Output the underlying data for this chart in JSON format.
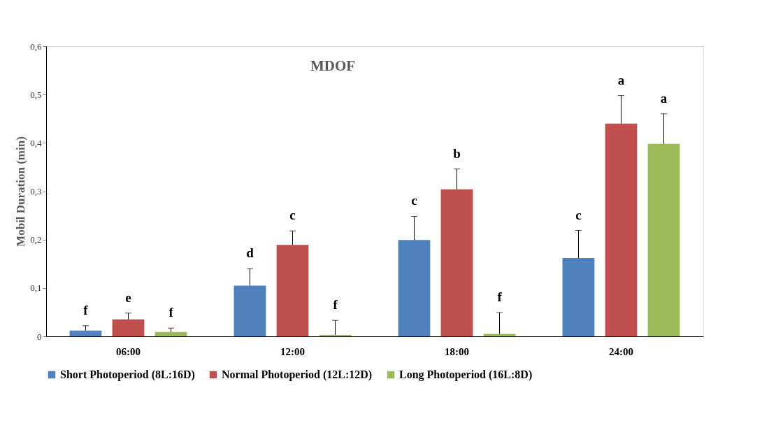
{
  "chart_data": {
    "type": "bar",
    "title": "MDOF",
    "ylabel": "Mobil Duration (min)",
    "categories": [
      "06:00",
      "12:00",
      "18:00",
      "24:00"
    ],
    "series": [
      {
        "name": "Short Photoperiod (8L:16D)",
        "color": "#4f81bd",
        "values": [
          0.012,
          0.105,
          0.199,
          0.162
        ],
        "errors": [
          0.01,
          0.035,
          0.049,
          0.057
        ],
        "value_labels": [
          "f",
          "d",
          "c",
          "c"
        ]
      },
      {
        "name": "Normal Photoperiod (12L:12D)",
        "color": "#c0504d",
        "values": [
          0.035,
          0.189,
          0.304,
          0.44
        ],
        "errors": [
          0.013,
          0.029,
          0.042,
          0.058
        ],
        "value_labels": [
          "e",
          "c",
          "b",
          "a"
        ]
      },
      {
        "name": "Long Photoperiod (16L:8D)",
        "color": "#9bbb59",
        "values": [
          0.009,
          0.003,
          0.005,
          0.398
        ],
        "errors": [
          0.008,
          0.03,
          0.044,
          0.062
        ],
        "value_labels": [
          "f",
          "f",
          "f",
          "a"
        ]
      }
    ],
    "ylim": [
      0,
      0.6
    ],
    "yticks": [
      0,
      {
        "value": 0.1,
        "label": "0,1"
      },
      {
        "value": 0.2,
        "label": "0,2"
      },
      {
        "value": 0.3,
        "label": "0,3"
      },
      {
        "value": 0.4,
        "label": "0,4"
      },
      {
        "value": 0.5,
        "label": "0,5"
      },
      {
        "value": 0.6,
        "label": "0,6"
      }
    ],
    "grid": false,
    "legend": "bottom"
  }
}
